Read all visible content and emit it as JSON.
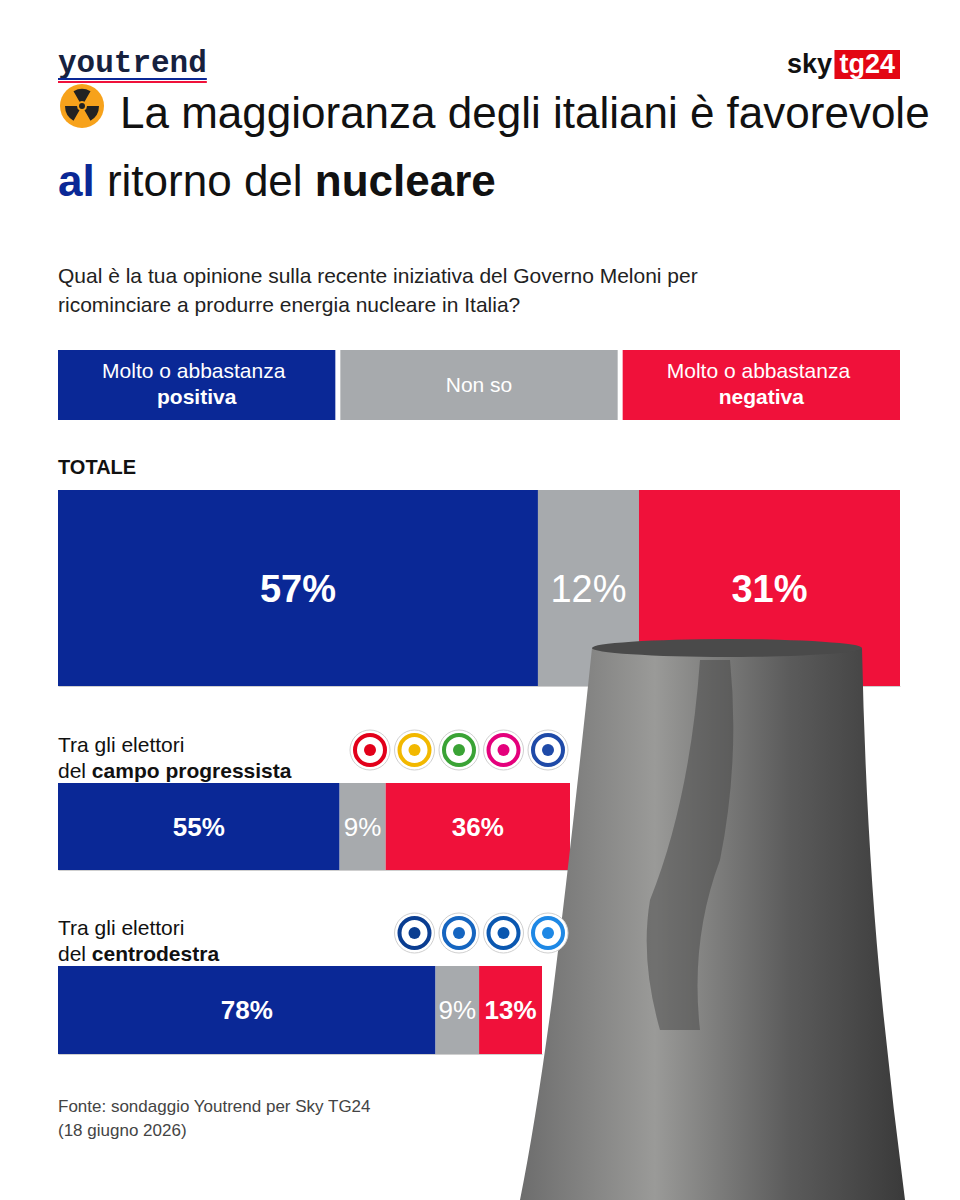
{
  "chart_data": {
    "type": "bar",
    "orientation": "horizontal",
    "stacked": true,
    "data_labels": true,
    "tick_labels": false,
    "legend": "top",
    "title": "La maggioranza degli italiani è favorevole al ritorno del nucleare",
    "subtitle": "Qual è la tua opinione sulla recente iniziativa del Governo Meloni per ricominciare a produrre energia nucleare in Italia?",
    "annotations": [
      "youtrend",
      "sky tg24"
    ],
    "source": "Fonte: sondaggio Youtrend per Sky TG24 (18 giugno 2026)",
    "categories": [
      "TOTALE",
      "Tra gli elettori del campo progressista",
      "Tra gli elettori del centrodestra"
    ],
    "xlim": [
      0,
      100
    ],
    "series": [
      {
        "name": "Molto o abbastanza positiva",
        "color": "#0a2896",
        "values": [
          57,
          55,
          78
        ],
        "value_labels": [
          "57%",
          "55%",
          "78%"
        ]
      },
      {
        "name": "Non so",
        "color": "#a7aaad",
        "values": [
          12,
          9,
          9
        ],
        "value_labels": [
          "12%",
          "9%",
          "9%"
        ]
      },
      {
        "name": "Molto o abbastanza negativa",
        "color": "#f0113a",
        "values": [
          31,
          36,
          13
        ],
        "value_labels": [
          "31%",
          "36%",
          "13%"
        ]
      }
    ]
  }
}
